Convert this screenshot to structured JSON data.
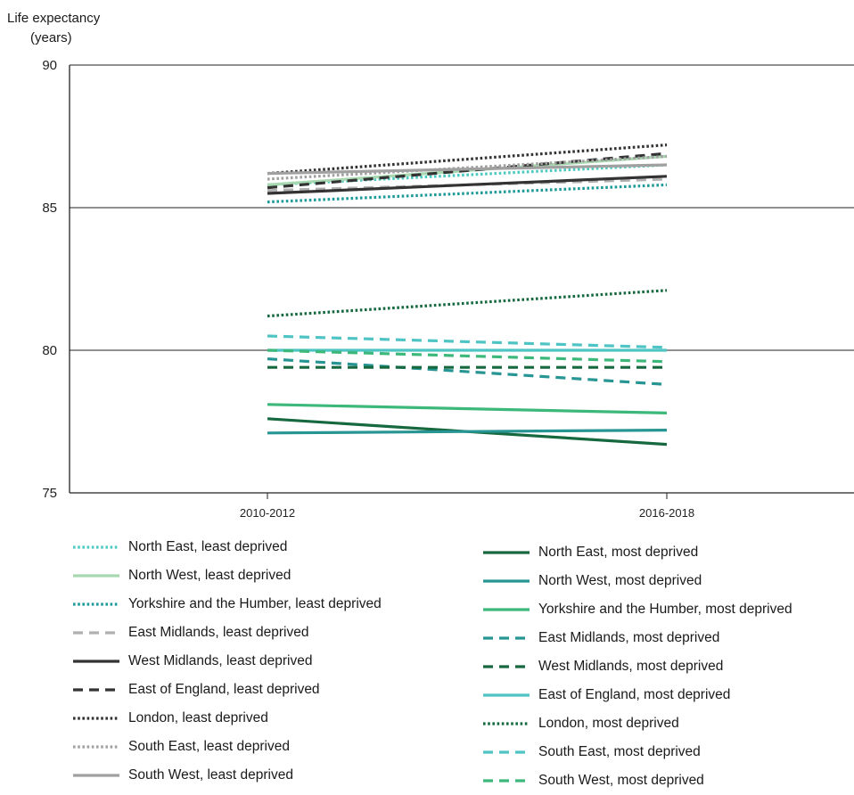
{
  "chart_data": {
    "type": "line",
    "ylabel_line1": "Life expectancy",
    "ylabel_line2": "(years)",
    "xlabel": "",
    "categories": [
      "2010-2012",
      "2016-2018"
    ],
    "ylim": [
      75,
      90
    ],
    "yticks": [
      75,
      80,
      85,
      90
    ],
    "grid": "horizontal",
    "legend_position": "bottom",
    "series": [
      {
        "name": "North East, least deprived",
        "values": [
          85.8,
          86.5
        ],
        "color": "#4cc9c0",
        "dash": "dotted"
      },
      {
        "name": "North West, least deprived",
        "values": [
          85.8,
          86.8
        ],
        "color": "#a8d8b0",
        "dash": "solid"
      },
      {
        "name": "Yorkshire and the Humber, least deprived",
        "values": [
          85.2,
          85.8
        ],
        "color": "#1f9a9a",
        "dash": "dotted"
      },
      {
        "name": "East Midlands, least deprived",
        "values": [
          85.6,
          86.0
        ],
        "color": "#b0b0b0",
        "dash": "dashed"
      },
      {
        "name": "West Midlands, least deprived",
        "values": [
          85.5,
          86.1
        ],
        "color": "#333333",
        "dash": "solid"
      },
      {
        "name": "East of England, least deprived",
        "values": [
          85.7,
          86.9
        ],
        "color": "#333333",
        "dash": "dashed"
      },
      {
        "name": "London, least deprived",
        "values": [
          86.2,
          87.2
        ],
        "color": "#333333",
        "dash": "dotted"
      },
      {
        "name": "South East, least deprived",
        "values": [
          86.0,
          86.8
        ],
        "color": "#a0a0a0",
        "dash": "dotted"
      },
      {
        "name": "South West, least deprived",
        "values": [
          86.2,
          86.5
        ],
        "color": "#a0a0a0",
        "dash": "solid"
      },
      {
        "name": "North East, most deprived",
        "values": [
          77.6,
          76.7
        ],
        "color": "#16683e",
        "dash": "solid"
      },
      {
        "name": "North West, most deprived",
        "values": [
          77.1,
          77.2
        ],
        "color": "#279593",
        "dash": "solid"
      },
      {
        "name": "Yorkshire and the Humber, most deprived",
        "values": [
          78.1,
          77.8
        ],
        "color": "#3cb87a",
        "dash": "solid"
      },
      {
        "name": "East Midlands, most deprived",
        "values": [
          79.7,
          78.8
        ],
        "color": "#279593",
        "dash": "dashed"
      },
      {
        "name": "West Midlands, most deprived",
        "values": [
          79.4,
          79.4
        ],
        "color": "#16683e",
        "dash": "dashed"
      },
      {
        "name": "East of England, most deprived",
        "values": [
          80.0,
          80.0
        ],
        "color": "#4ec4c4",
        "dash": "solid"
      },
      {
        "name": "London, most deprived",
        "values": [
          81.2,
          82.1
        ],
        "color": "#16683e",
        "dash": "dotted"
      },
      {
        "name": "South East, most deprived",
        "values": [
          80.5,
          80.1
        ],
        "color": "#4ec4c4",
        "dash": "dashed"
      },
      {
        "name": "South West, most deprived",
        "values": [
          80.0,
          79.6
        ],
        "color": "#3cb87a",
        "dash": "dashed"
      }
    ]
  }
}
